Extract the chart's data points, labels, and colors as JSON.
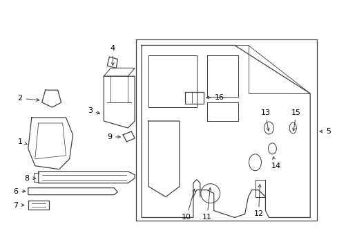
{
  "bg_color": "#ffffff",
  "line_color": "#404040",
  "text_color": "#000000",
  "fig_width": 4.89,
  "fig_height": 3.6,
  "dpi": 100
}
